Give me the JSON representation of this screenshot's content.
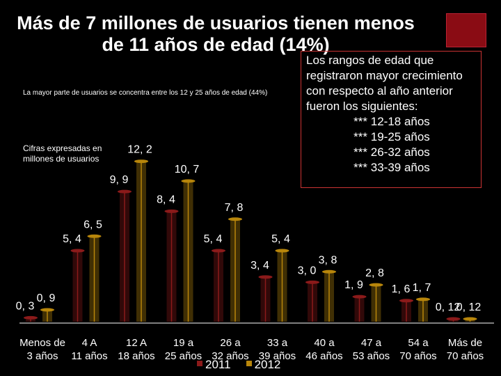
{
  "title": "Más de 7 millones de usuarios tienen menos\nde 11 años de edad (14%)",
  "subtitle": "La mayor parte de usuarios se concentra entre los 12 y 25 años de edad (44%)",
  "units_note": "Cifras expresadas en millones de usuarios",
  "note": {
    "intro": "Los rangos de edad que registraron mayor crecimiento con respecto al año anterior fueron los siguientes:",
    "items": [
      "***  12-18 años",
      "***  19-25 años",
      "***  26-32 años",
      "***  33-39 años"
    ],
    "border_color": "#cc3333"
  },
  "colors": {
    "s2011": "#8b1a1a",
    "s2012": "#b8860b",
    "background": "#000000",
    "accent_box": "#8a0c14"
  },
  "chart_data": {
    "type": "bar",
    "categories": [
      "Menos de 3 años",
      "4 A 11 años",
      "12 A 18 años",
      "19 a 25 años",
      "26 a 32 años",
      "33 a 39 años",
      "40 a 46 años",
      "47 a 53 años",
      "54 a 70 años",
      "Más de 70 años"
    ],
    "series": [
      {
        "name": "2011",
        "values": [
          0.3,
          5.4,
          9.9,
          8.4,
          5.4,
          3.4,
          3.0,
          1.9,
          1.6,
          0.12
        ],
        "labels": [
          "0, 3",
          "5, 4",
          "9, 9",
          "8, 4",
          "5, 4",
          "3, 4",
          "3, 0",
          "1, 9",
          "1, 6",
          "0, 12"
        ]
      },
      {
        "name": "2012",
        "values": [
          0.9,
          6.5,
          12.2,
          10.7,
          7.8,
          5.4,
          3.8,
          2.8,
          1.7,
          0.12
        ],
        "labels": [
          "0, 9",
          "6, 5",
          "12, 2",
          "10, 7",
          "7, 8",
          "5, 4",
          "3, 8",
          "2, 8",
          "1, 7",
          "0, 12"
        ]
      }
    ],
    "ylim": [
      0,
      14
    ],
    "grid": false,
    "legend": "bottom"
  }
}
